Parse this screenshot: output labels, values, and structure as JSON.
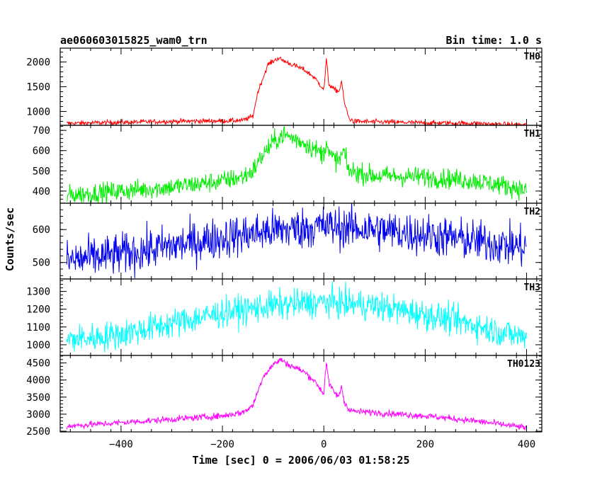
{
  "chart_data": {
    "type": "line",
    "title": "ae060603015825_wam0_trn",
    "subtitle": "Bin time: 1.0 s",
    "xlabel": "Time [sec] 0 = 2006/06/03 01:58:25",
    "ylabel": "Counts/sec",
    "xlim": [
      -520,
      430
    ],
    "x_ticks": [
      -400,
      -200,
      0,
      200,
      400
    ],
    "x_tick_labels": [
      "−400",
      "−200",
      "0",
      "200",
      "400"
    ],
    "x_data_range": [
      -507,
      400
    ],
    "bin_time_s": 1.0,
    "grid": false,
    "legend": "none",
    "series": [
      {
        "name": "TH0",
        "color": "#ff0000",
        "ylim": [
          720,
          2280
        ],
        "y_ticks": [
          1000,
          1500,
          2000
        ],
        "y_tick_labels": [
          "1000",
          "1500",
          "2000"
        ],
        "noise": 25,
        "x": [
          -507,
          -400,
          -300,
          -200,
          -160,
          -140,
          -130,
          -110,
          -90,
          -70,
          -40,
          -20,
          0,
          2,
          5,
          10,
          20,
          30,
          35,
          40,
          50,
          60,
          100,
          200,
          300,
          350,
          400
        ],
        "y": [
          760,
          780,
          800,
          810,
          820,
          900,
          1400,
          1950,
          2080,
          1980,
          1850,
          1700,
          1450,
          1650,
          2050,
          1550,
          1450,
          1400,
          1620,
          1200,
          850,
          800,
          790,
          770,
          760,
          740,
          730
        ]
      },
      {
        "name": "TH1",
        "color": "#00ee00",
        "ylim": [
          340,
          725
        ],
        "y_ticks": [
          400,
          500,
          600,
          700
        ],
        "y_tick_labels": [
          "400",
          "500",
          "600",
          "700"
        ],
        "noise": 25,
        "x": [
          -507,
          -400,
          -300,
          -200,
          -160,
          -140,
          -120,
          -100,
          -80,
          -60,
          -40,
          -20,
          0,
          5,
          10,
          20,
          30,
          40,
          45,
          50,
          100,
          200,
          300,
          350,
          400
        ],
        "y": [
          380,
          400,
          420,
          450,
          470,
          500,
          580,
          640,
          680,
          660,
          640,
          610,
          580,
          660,
          580,
          560,
          550,
          600,
          530,
          500,
          475,
          470,
          450,
          430,
          405
        ]
      },
      {
        "name": "TH2",
        "color": "#0000ee",
        "ylim": [
          450,
          680
        ],
        "y_ticks": [
          500,
          600
        ],
        "y_tick_labels": [
          "500",
          "600"
        ],
        "noise": 32,
        "x": [
          -507,
          -400,
          -300,
          -200,
          -100,
          0,
          100,
          200,
          300,
          400
        ],
        "y": [
          505,
          525,
          550,
          575,
          597,
          610,
          600,
          585,
          565,
          545
        ]
      },
      {
        "name": "TH3",
        "color": "#00ffff",
        "ylim": [
          940,
          1370
        ],
        "y_ticks": [
          1000,
          1100,
          1200,
          1300
        ],
        "y_tick_labels": [
          "1000",
          "1100",
          "1200",
          "1300"
        ],
        "noise": 42,
        "x": [
          -507,
          -450,
          -400,
          -300,
          -200,
          -100,
          0,
          100,
          200,
          300,
          350,
          400
        ],
        "y": [
          1030,
          1040,
          1060,
          1120,
          1180,
          1220,
          1240,
          1220,
          1170,
          1110,
          1070,
          1040
        ]
      },
      {
        "name": "TH0123",
        "color": "#ff00ff",
        "ylim": [
          2480,
          4720
        ],
        "y_ticks": [
          2500,
          3000,
          3500,
          4000,
          4500
        ],
        "y_tick_labels": [
          "2500",
          "3000",
          "3500",
          "4000",
          "4500"
        ],
        "noise": 48,
        "x": [
          -507,
          -400,
          -300,
          -200,
          -160,
          -140,
          -120,
          -100,
          -85,
          -70,
          -40,
          -20,
          0,
          2,
          5,
          10,
          20,
          30,
          35,
          40,
          50,
          60,
          100,
          200,
          300,
          350,
          400
        ],
        "y": [
          2650,
          2750,
          2850,
          2950,
          3050,
          3250,
          4100,
          4450,
          4600,
          4450,
          4250,
          4000,
          3600,
          4000,
          4550,
          3900,
          3650,
          3500,
          3850,
          3350,
          3150,
          3080,
          3050,
          2950,
          2800,
          2700,
          2600
        ]
      }
    ]
  }
}
